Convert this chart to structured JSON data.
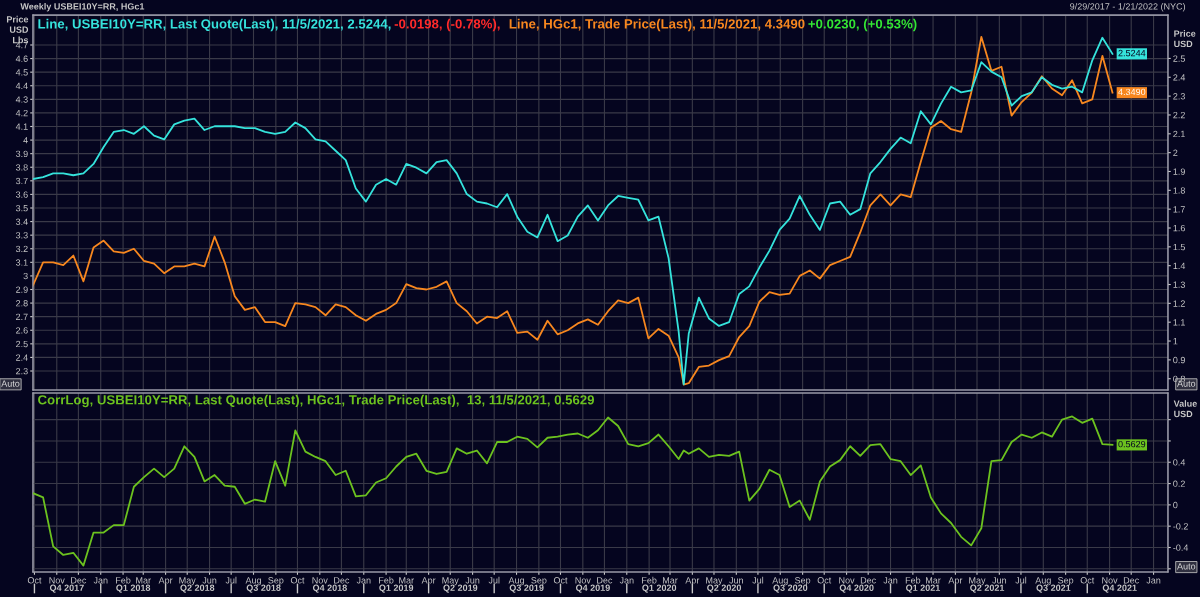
{
  "chart_data": [
    {
      "type": "line",
      "title": "Weekly USBEI10Y=RR, HGc1",
      "subtitle": "9/29/2017 - 1/21/2022 (NYC)",
      "ylabel": "Price\nUSD\nLbs",
      "y2label": "Price\nUSD",
      "x": [
        "2017-09-29",
        "2017-10-13",
        "2017-10-27",
        "2017-11-10",
        "2017-11-24",
        "2017-12-08",
        "2017-12-22",
        "2018-01-05",
        "2018-01-19",
        "2018-02-02",
        "2018-02-16",
        "2018-03-02",
        "2018-03-16",
        "2018-03-30",
        "2018-04-13",
        "2018-04-27",
        "2018-05-11",
        "2018-05-25",
        "2018-06-08",
        "2018-06-22",
        "2018-07-06",
        "2018-07-20",
        "2018-08-03",
        "2018-08-17",
        "2018-08-31",
        "2018-09-14",
        "2018-09-28",
        "2018-10-12",
        "2018-10-26",
        "2018-11-09",
        "2018-11-23",
        "2018-12-07",
        "2018-12-21",
        "2019-01-04",
        "2019-01-18",
        "2019-02-01",
        "2019-02-15",
        "2019-03-01",
        "2019-03-15",
        "2019-03-29",
        "2019-04-12",
        "2019-04-26",
        "2019-05-10",
        "2019-05-24",
        "2019-06-07",
        "2019-06-21",
        "2019-07-05",
        "2019-07-19",
        "2019-08-02",
        "2019-08-16",
        "2019-08-30",
        "2019-09-13",
        "2019-09-27",
        "2019-10-11",
        "2019-10-25",
        "2019-11-08",
        "2019-11-22",
        "2019-12-06",
        "2019-12-20",
        "2020-01-03",
        "2020-01-17",
        "2020-01-31",
        "2020-02-14",
        "2020-02-28",
        "2020-03-13",
        "2020-03-20",
        "2020-03-27",
        "2020-04-10",
        "2020-04-24",
        "2020-05-08",
        "2020-05-22",
        "2020-06-05",
        "2020-06-19",
        "2020-07-03",
        "2020-07-17",
        "2020-07-31",
        "2020-08-14",
        "2020-08-28",
        "2020-09-11",
        "2020-09-25",
        "2020-10-09",
        "2020-10-23",
        "2020-11-06",
        "2020-11-20",
        "2020-12-04",
        "2020-12-18",
        "2021-01-01",
        "2021-01-15",
        "2021-01-29",
        "2021-02-12",
        "2021-02-26",
        "2021-03-12",
        "2021-03-26",
        "2021-04-09",
        "2021-04-23",
        "2021-05-07",
        "2021-05-21",
        "2021-06-04",
        "2021-06-18",
        "2021-07-02",
        "2021-07-16",
        "2021-07-30",
        "2021-08-13",
        "2021-08-27",
        "2021-09-10",
        "2021-09-24",
        "2021-10-08",
        "2021-10-22",
        "2021-11-05"
      ],
      "series": [
        {
          "name": "Line, USBEI10Y=RR, Last Quote(Last), 11/5/2021, 2.5244,",
          "color": "#35e3dc",
          "axis": "y2",
          "values": [
            1.86,
            1.87,
            1.89,
            1.89,
            1.88,
            1.89,
            1.94,
            2.03,
            2.11,
            2.12,
            2.1,
            2.14,
            2.09,
            2.07,
            2.15,
            2.17,
            2.18,
            2.12,
            2.14,
            2.14,
            2.14,
            2.13,
            2.13,
            2.11,
            2.1,
            2.11,
            2.16,
            2.13,
            2.07,
            2.06,
            2.01,
            1.96,
            1.81,
            1.74,
            1.83,
            1.86,
            1.83,
            1.94,
            1.92,
            1.89,
            1.95,
            1.96,
            1.89,
            1.78,
            1.74,
            1.73,
            1.71,
            1.78,
            1.66,
            1.58,
            1.55,
            1.67,
            1.53,
            1.56,
            1.66,
            1.72,
            1.64,
            1.72,
            1.77,
            1.76,
            1.75,
            1.64,
            1.66,
            1.44,
            1.05,
            0.77,
            1.04,
            1.23,
            1.12,
            1.08,
            1.1,
            1.25,
            1.29,
            1.39,
            1.48,
            1.59,
            1.65,
            1.77,
            1.67,
            1.59,
            1.73,
            1.74,
            1.67,
            1.7,
            1.89,
            1.95,
            2.02,
            2.08,
            2.05,
            2.22,
            2.15,
            2.26,
            2.35,
            2.32,
            2.33,
            2.48,
            2.43,
            2.4,
            2.25,
            2.3,
            2.32,
            2.4,
            2.36,
            2.34,
            2.35,
            2.32,
            2.49,
            2.61,
            2.5244
          ],
          "value_labels": [
            null,
            null,
            null,
            null,
            null,
            null,
            null,
            null,
            null,
            null,
            null,
            null,
            null,
            null,
            null,
            null,
            null,
            null,
            null,
            null,
            null,
            null,
            null,
            null,
            null,
            null,
            null,
            null,
            null,
            null,
            null,
            null,
            null,
            null,
            null,
            null,
            null,
            null,
            null,
            null,
            null,
            null,
            null,
            null,
            null,
            null,
            null,
            null,
            null,
            null,
            null,
            null,
            null,
            null,
            null,
            null,
            null,
            null,
            null,
            null,
            null,
            null,
            null,
            null,
            null,
            null,
            null,
            null,
            null,
            null,
            null,
            null,
            null,
            null,
            null,
            null,
            null,
            null,
            null,
            null,
            null,
            null,
            null,
            null,
            null,
            null,
            null,
            null,
            null,
            null,
            null,
            null,
            null,
            null,
            null,
            null,
            null,
            null,
            null,
            null,
            null,
            null,
            null,
            null,
            null,
            null,
            null,
            null,
            "2.5244"
          ]
        },
        {
          "name": "Line, HGc1, Trade Price(Last), 11/5/2021, 4.3490",
          "color": "#f7871f",
          "axis": "y",
          "values": [
            2.93,
            3.1,
            3.1,
            3.08,
            3.15,
            2.96,
            3.21,
            3.26,
            3.18,
            3.17,
            3.2,
            3.11,
            3.09,
            3.02,
            3.07,
            3.07,
            3.09,
            3.07,
            3.29,
            3.1,
            2.85,
            2.75,
            2.77,
            2.66,
            2.66,
            2.63,
            2.8,
            2.79,
            2.77,
            2.71,
            2.79,
            2.77,
            2.71,
            2.67,
            2.72,
            2.75,
            2.8,
            2.94,
            2.91,
            2.9,
            2.92,
            2.96,
            2.8,
            2.74,
            2.65,
            2.7,
            2.69,
            2.74,
            2.58,
            2.59,
            2.53,
            2.67,
            2.57,
            2.6,
            2.65,
            2.68,
            2.64,
            2.74,
            2.82,
            2.8,
            2.84,
            2.54,
            2.61,
            2.56,
            2.4,
            2.2,
            2.21,
            2.33,
            2.34,
            2.38,
            2.41,
            2.55,
            2.63,
            2.81,
            2.88,
            2.86,
            2.87,
            3.0,
            3.04,
            2.98,
            3.08,
            3.11,
            3.14,
            3.32,
            3.52,
            3.6,
            3.52,
            3.6,
            3.58,
            3.84,
            4.09,
            4.14,
            4.08,
            4.06,
            4.35,
            4.76,
            4.51,
            4.54,
            4.18,
            4.28,
            4.35,
            4.47,
            4.38,
            4.33,
            4.44,
            4.27,
            4.3,
            4.62,
            4.349
          ],
          "value_labels": [
            null,
            null,
            null,
            null,
            null,
            null,
            null,
            null,
            null,
            null,
            null,
            null,
            null,
            null,
            null,
            null,
            null,
            null,
            null,
            null,
            null,
            null,
            null,
            null,
            null,
            null,
            null,
            null,
            null,
            null,
            null,
            null,
            null,
            null,
            null,
            null,
            null,
            null,
            null,
            null,
            null,
            null,
            null,
            null,
            null,
            null,
            null,
            null,
            null,
            null,
            null,
            null,
            null,
            null,
            null,
            null,
            null,
            null,
            null,
            null,
            null,
            null,
            null,
            null,
            null,
            null,
            null,
            null,
            null,
            null,
            null,
            null,
            null,
            null,
            null,
            null,
            null,
            null,
            null,
            null,
            null,
            null,
            null,
            null,
            null,
            null,
            null,
            null,
            null,
            null,
            null,
            null,
            null,
            null,
            null,
            null,
            null,
            null,
            null,
            null,
            null,
            null,
            null,
            null,
            null,
            null,
            null,
            null,
            "4.3490"
          ]
        }
      ],
      "annotations": [
        "-0.0198, (-0.78%),",
        "+0.0230, (+0.53%)",
        "Auto",
        "Auto"
      ],
      "xlim": [
        "2017-09-29",
        "2022-01-21"
      ],
      "xticks": [
        {
          "value": "2017-10-01",
          "label": null
        },
        {
          "value": "2017-11-01",
          "label": null
        },
        {
          "value": "2017-12-01",
          "label": null
        },
        {
          "value": "2018-01-01",
          "label": null
        },
        {
          "value": "2018-02-01",
          "label": null
        },
        {
          "value": "2018-03-01",
          "label": null
        },
        {
          "value": "2018-04-01",
          "label": null
        },
        {
          "value": "2018-05-01",
          "label": null
        },
        {
          "value": "2018-06-01",
          "label": null
        },
        {
          "value": "2018-07-01",
          "label": null
        },
        {
          "value": "2018-08-01",
          "label": null
        },
        {
          "value": "2018-09-01",
          "label": null
        },
        {
          "value": "2018-10-01",
          "label": null
        },
        {
          "value": "2018-11-01",
          "label": null
        },
        {
          "value": "2018-12-01",
          "label": null
        },
        {
          "value": "2019-01-01",
          "label": null
        },
        {
          "value": "2019-02-01",
          "label": null
        },
        {
          "value": "2019-03-01",
          "label": null
        },
        {
          "value": "2019-04-01",
          "label": null
        },
        {
          "value": "2019-05-01",
          "label": null
        },
        {
          "value": "2019-06-01",
          "label": null
        },
        {
          "value": "2019-07-01",
          "label": null
        },
        {
          "value": "2019-08-01",
          "label": null
        },
        {
          "value": "2019-09-01",
          "label": null
        },
        {
          "value": "2019-10-01",
          "label": null
        },
        {
          "value": "2019-11-01",
          "label": null
        },
        {
          "value": "2019-12-01",
          "label": null
        },
        {
          "value": "2020-01-01",
          "label": null
        },
        {
          "value": "2020-02-01",
          "label": null
        },
        {
          "value": "2020-03-01",
          "label": null
        },
        {
          "value": "2020-04-01",
          "label": null
        },
        {
          "value": "2020-05-01",
          "label": null
        },
        {
          "value": "2020-06-01",
          "label": null
        },
        {
          "value": "2020-07-01",
          "label": null
        },
        {
          "value": "2020-08-01",
          "label": null
        },
        {
          "value": "2020-09-01",
          "label": null
        },
        {
          "value": "2020-10-01",
          "label": null
        },
        {
          "value": "2020-11-01",
          "label": null
        },
        {
          "value": "2020-12-01",
          "label": null
        },
        {
          "value": "2021-01-01",
          "label": null
        },
        {
          "value": "2021-02-01",
          "label": null
        },
        {
          "value": "2021-03-01",
          "label": null
        },
        {
          "value": "2021-04-01",
          "label": null
        },
        {
          "value": "2021-05-01",
          "label": null
        },
        {
          "value": "2021-06-01",
          "label": null
        },
        {
          "value": "2021-07-01",
          "label": null
        },
        {
          "value": "2021-08-01",
          "label": null
        },
        {
          "value": "2021-09-01",
          "label": null
        },
        {
          "value": "2021-10-01",
          "label": null
        },
        {
          "value": "2021-11-01",
          "label": null
        },
        {
          "value": "2021-12-01",
          "label": null
        },
        {
          "value": "2022-01-01",
          "label": null
        }
      ],
      "ylim": [
        2.16,
        4.92
      ],
      "yticks": [
        2.3,
        2.4,
        2.5,
        2.6,
        2.7,
        2.8,
        2.9,
        3,
        3.1,
        3.2,
        3.3,
        3.4,
        3.5,
        3.6,
        3.7,
        3.8,
        3.9,
        4,
        4.1,
        4.2,
        4.3,
        4.4,
        4.5,
        4.6,
        4.7
      ],
      "y2lim": [
        0.74,
        2.73
      ],
      "y2ticks": [
        0.8,
        0.9,
        1,
        1.1,
        1.2,
        1.3,
        1.4,
        1.5,
        1.6,
        1.7,
        1.8,
        1.9,
        2,
        2.1,
        2.2,
        2.3,
        2.4,
        2.5
      ],
      "tick_labels": "y",
      "grid": true,
      "legend": "top left"
    },
    {
      "type": "line",
      "y2label": "Value\nUSD",
      "x": [
        "2017-09-29",
        "2017-10-13",
        "2017-10-27",
        "2017-11-10",
        "2017-11-24",
        "2017-12-08",
        "2017-12-22",
        "2018-01-05",
        "2018-01-19",
        "2018-02-02",
        "2018-02-16",
        "2018-03-02",
        "2018-03-16",
        "2018-03-30",
        "2018-04-13",
        "2018-04-27",
        "2018-05-11",
        "2018-05-25",
        "2018-06-08",
        "2018-06-22",
        "2018-07-06",
        "2018-07-20",
        "2018-08-03",
        "2018-08-17",
        "2018-08-31",
        "2018-09-14",
        "2018-09-28",
        "2018-10-12",
        "2018-10-26",
        "2018-11-09",
        "2018-11-23",
        "2018-12-07",
        "2018-12-21",
        "2019-01-04",
        "2019-01-18",
        "2019-02-01",
        "2019-02-15",
        "2019-03-01",
        "2019-03-15",
        "2019-03-29",
        "2019-04-12",
        "2019-04-26",
        "2019-05-10",
        "2019-05-24",
        "2019-06-07",
        "2019-06-21",
        "2019-07-05",
        "2019-07-19",
        "2019-08-02",
        "2019-08-16",
        "2019-08-30",
        "2019-09-13",
        "2019-09-27",
        "2019-10-11",
        "2019-10-25",
        "2019-11-08",
        "2019-11-22",
        "2019-12-06",
        "2019-12-20",
        "2020-01-03",
        "2020-01-17",
        "2020-01-31",
        "2020-02-14",
        "2020-02-28",
        "2020-03-13",
        "2020-03-20",
        "2020-03-27",
        "2020-04-10",
        "2020-04-24",
        "2020-05-08",
        "2020-05-22",
        "2020-06-05",
        "2020-06-19",
        "2020-07-03",
        "2020-07-17",
        "2020-07-31",
        "2020-08-14",
        "2020-08-28",
        "2020-09-11",
        "2020-09-25",
        "2020-10-09",
        "2020-10-23",
        "2020-11-06",
        "2020-11-20",
        "2020-12-04",
        "2020-12-18",
        "2021-01-01",
        "2021-01-15",
        "2021-01-29",
        "2021-02-12",
        "2021-02-26",
        "2021-03-12",
        "2021-03-26",
        "2021-04-09",
        "2021-04-23",
        "2021-05-07",
        "2021-05-21",
        "2021-06-04",
        "2021-06-18",
        "2021-07-02",
        "2021-07-16",
        "2021-07-30",
        "2021-08-13",
        "2021-08-27",
        "2021-09-10",
        "2021-09-24",
        "2021-10-08",
        "2021-10-22",
        "2021-11-05"
      ],
      "series": [
        {
          "name": "CorrLog, USBEI10Y=RR, Last Quote(Last), HGc1, Trade Price(Last),  13, 11/5/2021, 0.5629",
          "color": "#6cc21f",
          "axis": "y2",
          "values": [
            0.11,
            0.07,
            -0.39,
            -0.47,
            -0.45,
            -0.57,
            -0.26,
            -0.26,
            -0.19,
            -0.19,
            0.17,
            0.26,
            0.34,
            0.26,
            0.34,
            0.55,
            0.45,
            0.22,
            0.28,
            0.18,
            0.17,
            0.01,
            0.05,
            0.03,
            0.41,
            0.18,
            0.7,
            0.5,
            0.45,
            0.41,
            0.28,
            0.32,
            0.08,
            0.09,
            0.21,
            0.25,
            0.36,
            0.45,
            0.48,
            0.32,
            0.29,
            0.31,
            0.53,
            0.48,
            0.51,
            0.39,
            0.59,
            0.59,
            0.64,
            0.62,
            0.54,
            0.63,
            0.64,
            0.66,
            0.67,
            0.63,
            0.7,
            0.82,
            0.74,
            0.57,
            0.55,
            0.58,
            0.66,
            0.55,
            0.43,
            0.51,
            0.48,
            0.53,
            0.45,
            0.47,
            0.46,
            0.5,
            0.04,
            0.15,
            0.33,
            0.28,
            -0.02,
            0.04,
            -0.14,
            0.22,
            0.36,
            0.42,
            0.55,
            0.46,
            0.56,
            0.57,
            0.43,
            0.41,
            0.28,
            0.37,
            0.07,
            -0.08,
            -0.17,
            -0.3,
            -0.38,
            -0.22,
            0.41,
            0.42,
            0.59,
            0.66,
            0.63,
            0.68,
            0.64,
            0.8,
            0.83,
            0.77,
            0.81,
            0.57,
            0.5629
          ],
          "value_labels": [
            null,
            null,
            null,
            null,
            null,
            null,
            null,
            null,
            null,
            null,
            null,
            null,
            null,
            null,
            null,
            null,
            null,
            null,
            null,
            null,
            null,
            null,
            null,
            null,
            null,
            null,
            null,
            null,
            null,
            null,
            null,
            null,
            null,
            null,
            null,
            null,
            null,
            null,
            null,
            null,
            null,
            null,
            null,
            null,
            null,
            null,
            null,
            null,
            null,
            null,
            null,
            null,
            null,
            null,
            null,
            null,
            null,
            null,
            null,
            null,
            null,
            null,
            null,
            null,
            null,
            null,
            null,
            null,
            null,
            null,
            null,
            null,
            null,
            null,
            null,
            null,
            null,
            null,
            null,
            null,
            null,
            null,
            null,
            null,
            null,
            null,
            null,
            null,
            null,
            null,
            null,
            null,
            null,
            null,
            null,
            null,
            null,
            null,
            null,
            null,
            null,
            null,
            null,
            null,
            null,
            null,
            null,
            null,
            "0.5629"
          ]
        }
      ],
      "annotations": [
        "Auto"
      ],
      "xlim": [
        "2017-09-29",
        "2022-01-21"
      ],
      "xticks": [
        {
          "value": "2017-10-01",
          "label": "Oct"
        },
        {
          "value": "2017-11-01",
          "label": "Nov"
        },
        {
          "value": "2017-12-01",
          "label": "Dec"
        },
        {
          "value": "2018-01-01",
          "label": "Jan"
        },
        {
          "value": "2018-02-01",
          "label": "Feb"
        },
        {
          "value": "2018-03-01",
          "label": "Mar"
        },
        {
          "value": "2018-04-01",
          "label": "Apr"
        },
        {
          "value": "2018-05-01",
          "label": "May"
        },
        {
          "value": "2018-06-01",
          "label": "Jun"
        },
        {
          "value": "2018-07-01",
          "label": "Jul"
        },
        {
          "value": "2018-08-01",
          "label": "Aug"
        },
        {
          "value": "2018-09-01",
          "label": "Sep"
        },
        {
          "value": "2018-10-01",
          "label": "Oct"
        },
        {
          "value": "2018-11-01",
          "label": "Nov"
        },
        {
          "value": "2018-12-01",
          "label": "Dec"
        },
        {
          "value": "2019-01-01",
          "label": "Jan"
        },
        {
          "value": "2019-02-01",
          "label": "Feb"
        },
        {
          "value": "2019-03-01",
          "label": "Mar"
        },
        {
          "value": "2019-04-01",
          "label": "Apr"
        },
        {
          "value": "2019-05-01",
          "label": "May"
        },
        {
          "value": "2019-06-01",
          "label": "Jun"
        },
        {
          "value": "2019-07-01",
          "label": "Jul"
        },
        {
          "value": "2019-08-01",
          "label": "Aug"
        },
        {
          "value": "2019-09-01",
          "label": "Sep"
        },
        {
          "value": "2019-10-01",
          "label": "Oct"
        },
        {
          "value": "2019-11-01",
          "label": "Nov"
        },
        {
          "value": "2019-12-01",
          "label": "Dec"
        },
        {
          "value": "2020-01-01",
          "label": "Jan"
        },
        {
          "value": "2020-02-01",
          "label": "Feb"
        },
        {
          "value": "2020-03-01",
          "label": "Mar"
        },
        {
          "value": "2020-04-01",
          "label": "Apr"
        },
        {
          "value": "2020-05-01",
          "label": "May"
        },
        {
          "value": "2020-06-01",
          "label": "Jun"
        },
        {
          "value": "2020-07-01",
          "label": "Jul"
        },
        {
          "value": "2020-08-01",
          "label": "Aug"
        },
        {
          "value": "2020-09-01",
          "label": "Sep"
        },
        {
          "value": "2020-10-01",
          "label": "Oct"
        },
        {
          "value": "2020-11-01",
          "label": "Nov"
        },
        {
          "value": "2020-12-01",
          "label": "Dec"
        },
        {
          "value": "2021-01-01",
          "label": "Jan"
        },
        {
          "value": "2021-02-01",
          "label": "Feb"
        },
        {
          "value": "2021-03-01",
          "label": "Mar"
        },
        {
          "value": "2021-04-01",
          "label": "Apr"
        },
        {
          "value": "2021-05-01",
          "label": "May"
        },
        {
          "value": "2021-06-01",
          "label": "Jun"
        },
        {
          "value": "2021-07-01",
          "label": "Jul"
        },
        {
          "value": "2021-08-01",
          "label": "Aug"
        },
        {
          "value": "2021-09-01",
          "label": "Sep"
        },
        {
          "value": "2021-10-01",
          "label": "Oct"
        },
        {
          "value": "2021-11-01",
          "label": "Nov"
        },
        {
          "value": "2021-12-01",
          "label": "Dec"
        },
        {
          "value": "2022-01-01",
          "label": "Jan"
        }
      ],
      "x2lim": [
        "2017-09-29",
        "2022-01-21"
      ],
      "x2ticks": [
        {
          "value": "2017-10-01",
          "label": null
        },
        {
          "value": "2017-11-15",
          "label": "Q4 2017"
        },
        {
          "value": "2018-01-01",
          "label": null
        },
        {
          "value": "2018-02-15",
          "label": "Q1 2018"
        },
        {
          "value": "2018-04-01",
          "label": null
        },
        {
          "value": "2018-05-15",
          "label": "Q2 2018"
        },
        {
          "value": "2018-07-01",
          "label": null
        },
        {
          "value": "2018-08-15",
          "label": "Q3 2018"
        },
        {
          "value": "2018-10-01",
          "label": null
        },
        {
          "value": "2018-11-15",
          "label": "Q4 2018"
        },
        {
          "value": "2019-01-01",
          "label": null
        },
        {
          "value": "2019-02-15",
          "label": "Q1 2019"
        },
        {
          "value": "2019-04-01",
          "label": null
        },
        {
          "value": "2019-05-15",
          "label": "Q2 2019"
        },
        {
          "value": "2019-07-01",
          "label": null
        },
        {
          "value": "2019-08-15",
          "label": "Q3 2019"
        },
        {
          "value": "2019-10-01",
          "label": null
        },
        {
          "value": "2019-11-15",
          "label": "Q4 2019"
        },
        {
          "value": "2020-01-01",
          "label": null
        },
        {
          "value": "2020-02-15",
          "label": "Q1 2020"
        },
        {
          "value": "2020-04-01",
          "label": null
        },
        {
          "value": "2020-05-15",
          "label": "Q2 2020"
        },
        {
          "value": "2020-07-01",
          "label": null
        },
        {
          "value": "2020-08-15",
          "label": "Q3 2020"
        },
        {
          "value": "2020-10-01",
          "label": null
        },
        {
          "value": "2020-11-15",
          "label": "Q4 2020"
        },
        {
          "value": "2021-01-01",
          "label": null
        },
        {
          "value": "2021-02-15",
          "label": "Q1 2021"
        },
        {
          "value": "2021-04-01",
          "label": null
        },
        {
          "value": "2021-05-15",
          "label": "Q2 2021"
        },
        {
          "value": "2021-07-01",
          "label": null
        },
        {
          "value": "2021-08-15",
          "label": "Q3 2021"
        },
        {
          "value": "2021-10-01",
          "label": null
        },
        {
          "value": "2021-11-15",
          "label": "Q4 2021"
        }
      ],
      "y2lim": [
        -0.63,
        1.05
      ],
      "y2ticks": [
        {
          "value": -0.6,
          "label": null
        },
        -0.4,
        -0.2,
        0,
        0.2,
        0.4,
        {
          "value": 0.6,
          "label": null
        },
        {
          "value": 0.8,
          "label": null
        }
      ],
      "grid": true,
      "legend": "top left"
    }
  ]
}
